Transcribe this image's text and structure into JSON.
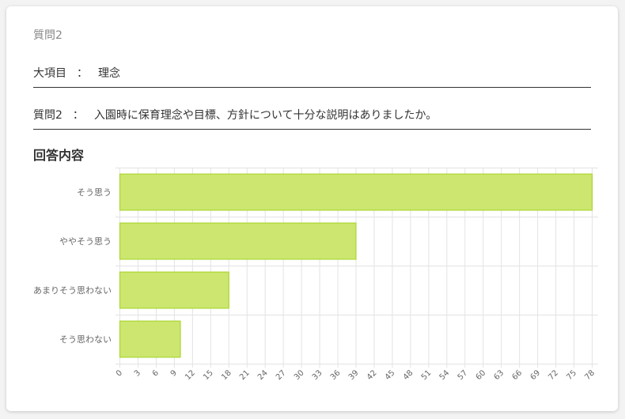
{
  "question_number": "質問2",
  "category": {
    "label": "大項目",
    "separator": "：",
    "value": "理念"
  },
  "question": {
    "label": "質問2",
    "separator": "：",
    "value": "入園時に保育理念や目標、方針について十分な説明はありましたか。"
  },
  "answers_heading": "回答内容",
  "colors": {
    "bar_fill": "#cce670",
    "bar_stroke": "#a5d21e",
    "grid": "#e3e3e3"
  },
  "chart_data": {
    "type": "bar",
    "orientation": "horizontal",
    "categories": [
      "そう思う",
      "ややそう思う",
      "あまりそう思わない",
      "そう思わない"
    ],
    "values": [
      78,
      39,
      18,
      10
    ],
    "xlim": [
      0,
      78
    ],
    "xticks": [
      "0",
      "3",
      "6",
      "9",
      "12",
      "15",
      "18",
      "21",
      "24",
      "27",
      "30",
      "33",
      "36",
      "39",
      "42",
      "45",
      "48",
      "51",
      "54",
      "57",
      "60",
      "63",
      "66",
      "69",
      "72",
      "75",
      "78"
    ],
    "grid": true,
    "legend": false
  }
}
